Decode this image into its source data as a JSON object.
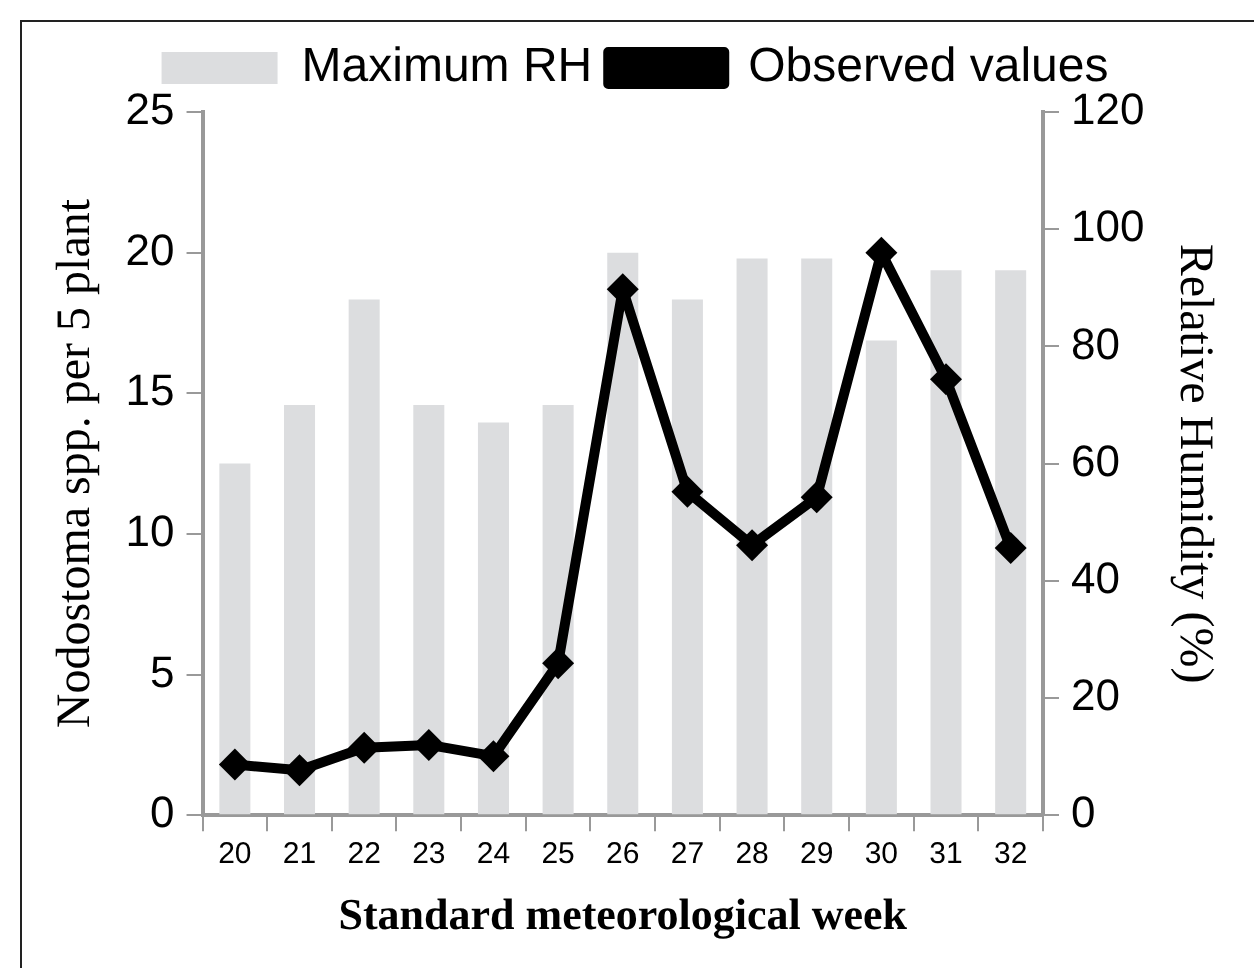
{
  "chart_data": {
    "type": "bar",
    "xlabel": "Standard meteorological week",
    "ylabel": "Nodostoma spp. per 5 plant",
    "y2label": "Relative Humidity (%)",
    "categories": [
      "20",
      "21",
      "22",
      "23",
      "24",
      "25",
      "26",
      "27",
      "28",
      "29",
      "30",
      "31",
      "32"
    ],
    "series": [
      {
        "name": "Maximum RH",
        "axis": "y2",
        "color": "#dcdddf",
        "values": [
          60,
          70,
          88,
          70,
          67,
          70,
          96,
          88,
          95,
          95,
          81,
          93,
          93
        ]
      },
      {
        "name": "Observed values",
        "type": "line",
        "color": "#000000",
        "values": [
          1.8,
          1.6,
          2.4,
          2.5,
          2.1,
          5.4,
          18.7,
          11.5,
          9.6,
          11.3,
          20.0,
          15.5,
          9.5
        ]
      }
    ],
    "ylim": [
      0,
      25
    ],
    "yticks": [
      0,
      5,
      10,
      15,
      20,
      25
    ],
    "y2lim": [
      0,
      120
    ],
    "y2ticks": [
      0,
      20,
      40,
      60,
      80,
      100,
      120
    ],
    "grid": false,
    "legend": "top",
    "marker": "diamond",
    "line_style": "solid"
  }
}
